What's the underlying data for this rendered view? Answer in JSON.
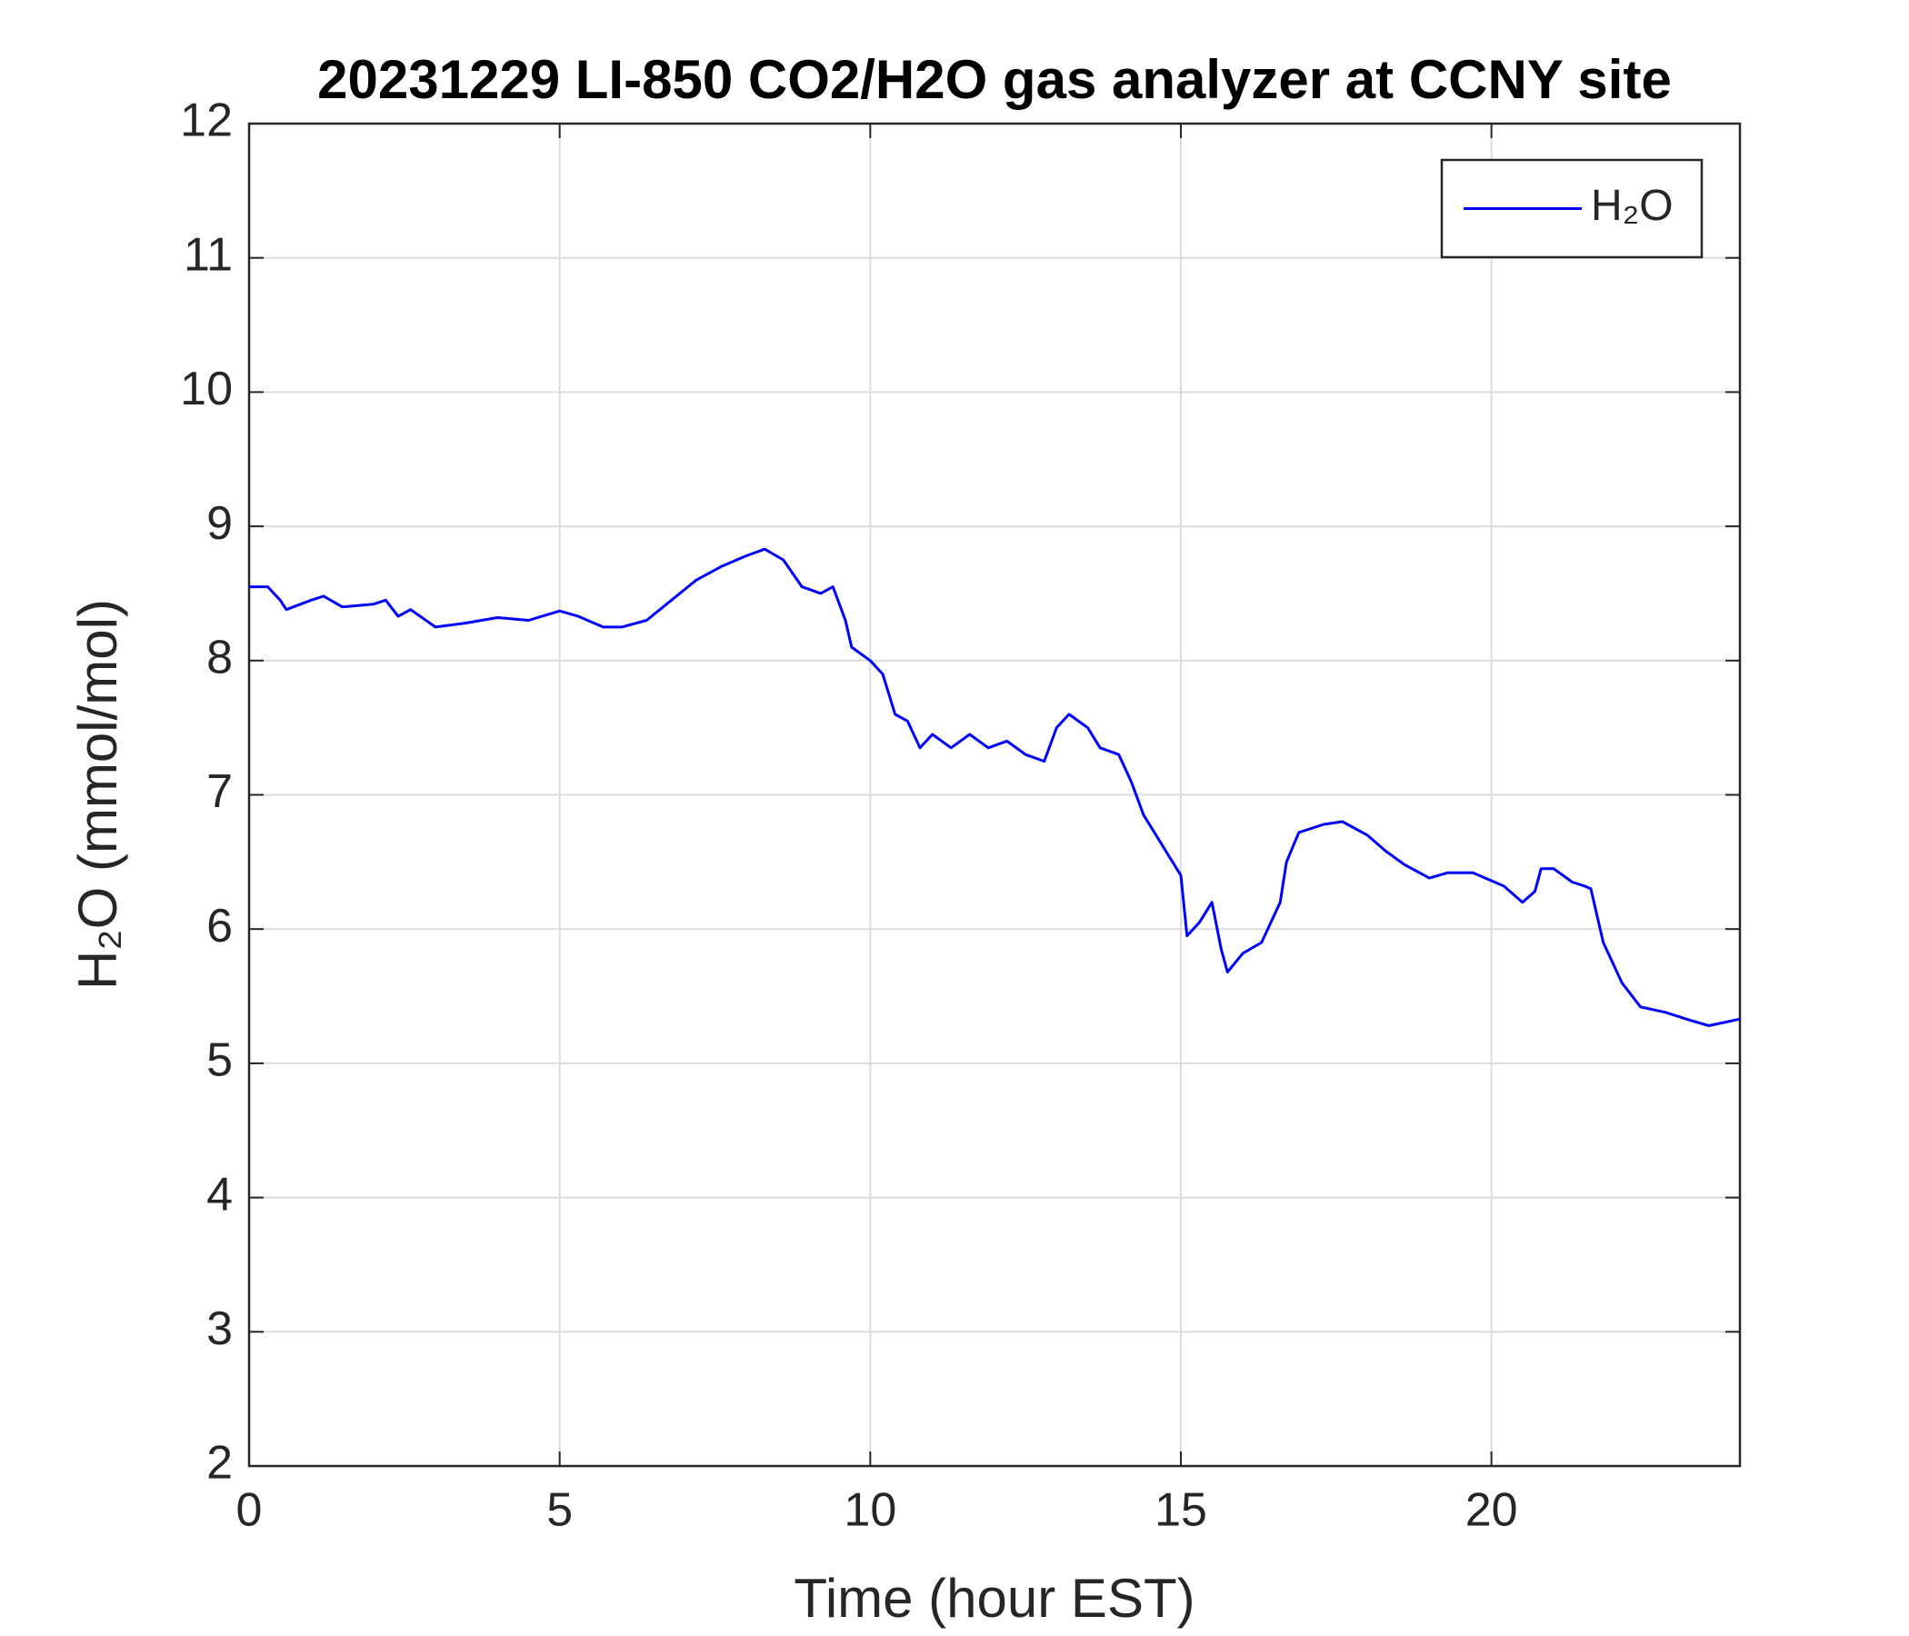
{
  "chart_data": {
    "type": "line",
    "title": "20231229 LI-850 CO2/H2O gas analyzer at CCNY site",
    "xlabel": "Time (hour EST)",
    "ylabel": "H₂O (mmol/mol)",
    "xlim": [
      0,
      24
    ],
    "xticks": [
      0,
      5,
      10,
      15,
      20
    ],
    "ylim": [
      2,
      12
    ],
    "yticks": [
      2,
      3,
      4,
      5,
      6,
      7,
      8,
      9,
      10,
      11,
      12
    ],
    "grid": true,
    "legend": "upper right",
    "x": [
      0,
      0.3,
      0.5,
      0.6,
      1,
      1.2,
      1.5,
      2,
      2.2,
      2.4,
      2.6,
      3,
      3.5,
      4,
      4.5,
      5,
      5.3,
      5.7,
      6,
      6.4,
      6.8,
      7.2,
      7.6,
      8,
      8.3,
      8.6,
      8.9,
      9.2,
      9.4,
      9.6,
      9.7,
      10,
      10.2,
      10.4,
      10.6,
      10.8,
      11,
      11.3,
      11.6,
      11.9,
      12.2,
      12.5,
      12.8,
      13,
      13.2,
      13.5,
      13.7,
      14,
      14.2,
      14.4,
      14.6,
      14.8,
      15,
      15.1,
      15.3,
      15.5,
      15.65,
      15.75,
      16,
      16.3,
      16.6,
      16.7,
      16.9,
      17.3,
      17.6,
      18,
      18.3,
      18.6,
      19,
      19.3,
      19.7,
      20.2,
      20.5,
      20.7,
      20.8,
      21,
      21.3,
      21.5,
      21.6,
      21.8,
      22.1,
      22.4,
      22.8,
      23.2,
      23.5,
      24
    ],
    "series": [
      {
        "name": "H₂O",
        "color": "#0000ff",
        "values": [
          8.55,
          8.55,
          8.45,
          8.38,
          8.45,
          8.48,
          8.4,
          8.42,
          8.45,
          8.33,
          8.38,
          8.25,
          8.28,
          8.32,
          8.3,
          8.37,
          8.33,
          8.25,
          8.25,
          8.3,
          8.45,
          8.6,
          8.7,
          8.78,
          8.83,
          8.75,
          8.55,
          8.5,
          8.55,
          8.3,
          8.1,
          8.0,
          7.9,
          7.6,
          7.55,
          7.35,
          7.45,
          7.35,
          7.45,
          7.35,
          7.4,
          7.3,
          7.25,
          7.5,
          7.6,
          7.5,
          7.35,
          7.3,
          7.1,
          6.85,
          6.7,
          6.55,
          6.4,
          5.95,
          6.05,
          6.2,
          5.85,
          5.68,
          5.82,
          5.9,
          6.2,
          6.5,
          6.72,
          6.78,
          6.8,
          6.7,
          6.58,
          6.48,
          6.38,
          6.42,
          6.42,
          6.32,
          6.2,
          6.28,
          6.45,
          6.45,
          6.35,
          6.32,
          6.3,
          5.9,
          5.6,
          5.42,
          5.38,
          5.32,
          5.28,
          5.33
        ]
      }
    ]
  }
}
